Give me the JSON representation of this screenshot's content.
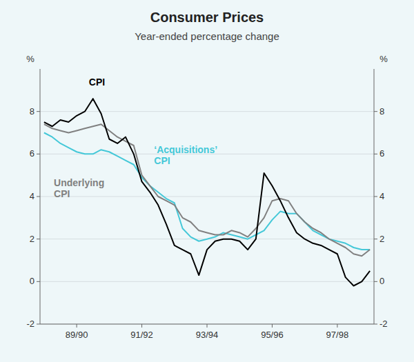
{
  "chart_data": {
    "type": "line",
    "title": "Consumer Prices",
    "subtitle": "Year-ended percentage change",
    "ylabel": "%",
    "y2label": "%",
    "categories": [
      null,
      null,
      null,
      null,
      "89/90",
      null,
      null,
      null,
      null,
      null,
      null,
      null,
      "91/92",
      null,
      null,
      null,
      null,
      null,
      null,
      null,
      "93/94",
      null,
      null,
      null,
      null,
      null,
      null,
      null,
      "95/96",
      null,
      null,
      null,
      null,
      null,
      null,
      null,
      "97/98",
      null,
      null,
      null,
      null
    ],
    "series": [
      {
        "name": "CPI",
        "color": "#000000",
        "values": [
          7.5,
          7.3,
          7.6,
          7.5,
          7.8,
          8.0,
          8.6,
          7.9,
          6.7,
          6.5,
          6.8,
          6.0,
          4.7,
          4.2,
          3.6,
          2.7,
          1.7,
          1.5,
          1.3,
          0.3,
          1.5,
          1.9,
          2.0,
          2.0,
          1.9,
          1.5,
          2.0,
          5.1,
          4.5,
          3.8,
          3.0,
          2.3,
          2.0,
          1.8,
          1.7,
          1.5,
          1.3,
          0.2,
          -0.2,
          0.0,
          0.5
        ]
      },
      {
        "name": "Underlying\nCPI",
        "color": "#808080",
        "values": [
          7.4,
          7.2,
          7.1,
          7.0,
          7.1,
          7.2,
          7.3,
          7.4,
          7.1,
          6.8,
          6.6,
          6.4,
          5.0,
          4.5,
          4.0,
          3.8,
          3.6,
          3.0,
          2.8,
          2.4,
          2.3,
          2.2,
          2.2,
          2.4,
          2.3,
          2.1,
          2.5,
          3.0,
          3.8,
          3.9,
          3.8,
          3.2,
          2.8,
          2.5,
          2.3,
          2.0,
          1.8,
          1.6,
          1.3,
          1.2,
          1.5
        ]
      },
      {
        "name": "‘Acquisitions’\nCPI",
        "color": "#44c8d8",
        "values": [
          7.0,
          6.8,
          6.5,
          6.3,
          6.1,
          6.0,
          6.0,
          6.2,
          6.1,
          5.9,
          5.7,
          5.5,
          4.9,
          4.5,
          4.2,
          3.9,
          3.7,
          2.5,
          2.1,
          1.9,
          2.0,
          2.1,
          2.3,
          2.2,
          2.1,
          2.0,
          2.2,
          2.4,
          2.9,
          3.3,
          3.2,
          3.2,
          2.8,
          2.4,
          2.2,
          2.0,
          1.9,
          1.8,
          1.6,
          1.5,
          1.5
        ]
      }
    ],
    "ylim": [
      -2,
      10
    ],
    "yticks": [
      -2,
      0,
      2,
      4,
      6,
      8
    ],
    "y2lim": [
      -2,
      10
    ],
    "y2ticks": [
      -2,
      0,
      2,
      4,
      6,
      8
    ],
    "grid": true
  }
}
